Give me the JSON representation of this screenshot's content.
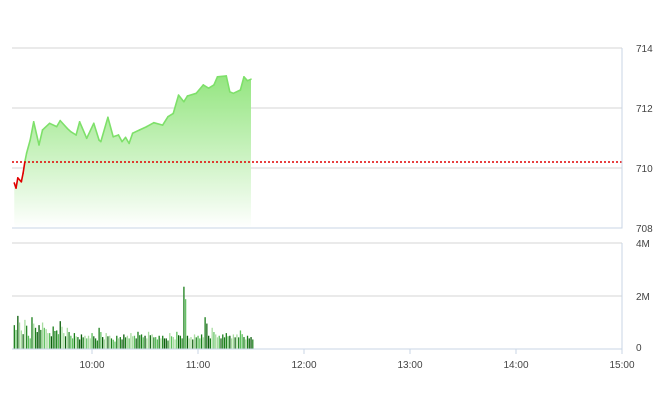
{
  "chart_data": [
    {
      "type": "area",
      "panel": "price",
      "x_axis": {
        "type": "time",
        "range": [
          "09:15",
          "15:00"
        ],
        "ticks": [
          "10:00",
          "11:00",
          "12:00",
          "13:00",
          "14:00",
          "15:00"
        ]
      },
      "y_axis": {
        "position": "right",
        "range": [
          708,
          714
        ],
        "ticks": [
          "714",
          "712",
          "710",
          "708"
        ]
      },
      "grid": true,
      "reference_line": {
        "value": 710.2,
        "style": "dotted",
        "color": "#e00000"
      },
      "colors": {
        "above_reference": "#7ee06a",
        "below_reference": "#e00000",
        "fill_top": "#9be889",
        "fill_bottom": "#ffffff"
      },
      "series": [
        {
          "x": [
            "09:16",
            "09:17",
            "09:18",
            "09:20",
            "09:21",
            "09:22",
            "09:23",
            "09:25",
            "09:27",
            "09:30",
            "09:32",
            "09:36",
            "09:40",
            "09:42",
            "09:46",
            "09:48",
            "09:51",
            "09:53",
            "09:57",
            "10:01",
            "10:04",
            "10:05",
            "10:09",
            "10:12",
            "10:15",
            "10:17",
            "10:19",
            "10:21",
            "10:23",
            "10:27",
            "10:31",
            "10:35",
            "10:40",
            "10:43",
            "10:46",
            "10:49",
            "10:52",
            "10:54",
            "10:59",
            "11:03",
            "11:06",
            "11:09",
            "11:11",
            "11:16",
            "11:18",
            "11:20",
            "11:24",
            "11:26",
            "11:28",
            "11:30"
          ],
          "y": [
            709.5,
            709.33,
            709.67,
            709.54,
            709.83,
            710.21,
            710.5,
            710.93,
            711.54,
            710.77,
            711.27,
            711.49,
            711.38,
            711.58,
            711.32,
            711.21,
            711.1,
            711.54,
            710.99,
            711.49,
            710.93,
            710.88,
            711.69,
            711.04,
            711.1,
            710.88,
            711.02,
            710.82,
            711.16,
            711.27,
            711.38,
            711.51,
            711.43,
            711.71,
            711.82,
            712.43,
            712.21,
            712.4,
            712.49,
            712.77,
            712.66,
            712.77,
            713.04,
            713.07,
            712.54,
            712.49,
            712.6,
            713.04,
            712.91,
            712.96
          ]
        }
      ]
    },
    {
      "type": "bar",
      "panel": "volume",
      "x_axis": {
        "type": "time",
        "range": [
          "09:15",
          "15:00"
        ],
        "ticks": [
          "10:00",
          "11:00",
          "12:00",
          "13:00",
          "14:00",
          "15:00"
        ]
      },
      "y_axis": {
        "position": "right",
        "range": [
          0,
          4000000
        ],
        "ticks": [
          "4M",
          "2M",
          "0"
        ]
      },
      "grid": true,
      "colors": [
        "#1a7f1a",
        "#5cbf5c",
        "#a8dca0",
        "#0b5e0b"
      ],
      "start": "09:16",
      "interval_minutes": 2,
      "values_millions": [
        0.9,
        1.25,
        0.7,
        1.1,
        0.5,
        1.2,
        0.8,
        0.9,
        1.0,
        0.75,
        0.6,
        0.85,
        0.7,
        1.05,
        0.6,
        0.8,
        0.5,
        0.6,
        0.45,
        0.55,
        0.5,
        0.5,
        0.6,
        0.4,
        0.8,
        0.45,
        0.6,
        0.5,
        0.35,
        0.5,
        0.45,
        0.55,
        0.5,
        0.6,
        0.5,
        0.65,
        0.55,
        0.5,
        0.65,
        0.55,
        0.45,
        0.5,
        0.5,
        0.4,
        0.6,
        0.45,
        0.65,
        0.5,
        2.35,
        0.5,
        0.45,
        0.55,
        0.5,
        0.55,
        1.2,
        0.5,
        0.8,
        0.55,
        0.5,
        0.55,
        0.6,
        0.5,
        0.55,
        0.55,
        0.7,
        0.45,
        0.5,
        0.45
      ]
    }
  ]
}
